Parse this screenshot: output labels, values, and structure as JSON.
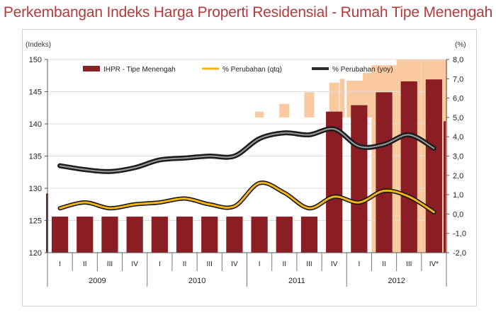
{
  "title": "Perkembangan Indeks Harga Properti Residensial - Rumah Tipe Menengah",
  "chart_data": {
    "type": "bar",
    "categories": [
      "I",
      "II",
      "III",
      "IV",
      "I",
      "II",
      "III",
      "IV",
      "I",
      "II",
      "III",
      "IV",
      "I",
      "II",
      "III",
      "IV*"
    ],
    "years": [
      "2009",
      "2010",
      "2011",
      "2012"
    ],
    "y_left_label": "(Indeks)",
    "y_right_label": "(%)",
    "y_left_range": [
      120,
      150
    ],
    "y_left_ticks": [
      "120",
      "125",
      "130",
      "135",
      "140",
      "145",
      "150"
    ],
    "y_right_range": [
      -2,
      8
    ],
    "y_right_ticks": [
      "-2,0",
      "-1,0",
      "0,0",
      "1,0",
      "2,0",
      "3,0",
      "4,0",
      "5,0",
      "6,0",
      "7,0",
      "8,0"
    ],
    "legend": [
      "IHPR - Tipe Menengah",
      "% Perubahan (qtq)",
      "% Perubahan (yoy)"
    ],
    "series": [
      {
        "name": "IHPR - Tipe Menengah",
        "type": "bar",
        "axis": "left",
        "values": [
          125.6,
          125.6,
          125.6,
          125.6,
          125.6,
          125.6,
          125.6,
          125.6,
          125.6,
          125.6,
          125.6,
          141.9,
          142.9,
          144.9,
          146.6,
          146.9
        ]
      },
      {
        "name": "% Perubahan (qtq)",
        "type": "line",
        "axis": "right",
        "values": [
          0.3,
          0.6,
          0.3,
          0.5,
          0.6,
          0.8,
          0.5,
          0.4,
          1.6,
          1.1,
          0.3,
          0.9,
          0.6,
          1.2,
          0.9,
          0.1
        ]
      },
      {
        "name": "% Perubahan (yoy)",
        "type": "line",
        "axis": "right",
        "values": [
          2.5,
          2.3,
          2.2,
          2.4,
          2.8,
          2.9,
          3.0,
          3.0,
          3.9,
          4.2,
          4.1,
          4.4,
          3.5,
          3.6,
          4.1,
          3.4
        ]
      }
    ],
    "colors": {
      "bar": "#8b1e24",
      "qtq": "#f2b416",
      "yoy": "#3a3a3a",
      "highlight": "#f9c9a0"
    }
  }
}
